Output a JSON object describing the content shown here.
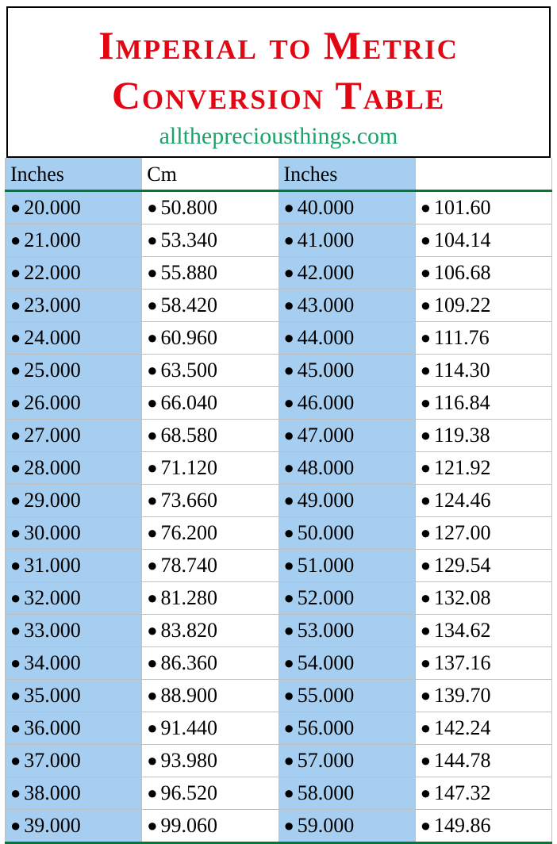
{
  "title_line1": "Imperial to Metric",
  "title_line2": "Conversion Table",
  "title_color": "#e30613",
  "subtitle": "allthepreciousthings.com",
  "subtitle_color": "#1aa36b",
  "background_color": "#ffffff",
  "table": {
    "border_color": "#c0c0c0",
    "header_border_color": "#007a33",
    "bottom_border_color": "#007a33",
    "columns": [
      {
        "label": "Inches",
        "bg": "#a6cef0"
      },
      {
        "label": "Cm",
        "bg": "#ffffff"
      },
      {
        "label": "Inches",
        "bg": "#a6cef0"
      },
      {
        "label": "",
        "bg": "#ffffff"
      }
    ],
    "rows": [
      [
        "20.000",
        "50.800",
        "40.000",
        "101.60"
      ],
      [
        "21.000",
        "53.340",
        "41.000",
        "104.14"
      ],
      [
        "22.000",
        "55.880",
        "42.000",
        "106.68"
      ],
      [
        "23.000",
        "58.420",
        "43.000",
        "109.22"
      ],
      [
        "24.000",
        "60.960",
        "44.000",
        "111.76"
      ],
      [
        "25.000",
        "63.500",
        "45.000",
        "114.30"
      ],
      [
        "26.000",
        "66.040",
        "46.000",
        "116.84"
      ],
      [
        "27.000",
        "68.580",
        "47.000",
        "119.38"
      ],
      [
        "28.000",
        "71.120",
        "48.000",
        "121.92"
      ],
      [
        "29.000",
        "73.660",
        "49.000",
        "124.46"
      ],
      [
        "30.000",
        "76.200",
        "50.000",
        "127.00"
      ],
      [
        "31.000",
        "78.740",
        "51.000",
        "129.54"
      ],
      [
        "32.000",
        "81.280",
        "52.000",
        "132.08"
      ],
      [
        "33.000",
        "83.820",
        "53.000",
        "134.62"
      ],
      [
        "34.000",
        "86.360",
        "54.000",
        "137.16"
      ],
      [
        "35.000",
        "88.900",
        "55.000",
        "139.70"
      ],
      [
        "36.000",
        "91.440",
        "56.000",
        "142.24"
      ],
      [
        "37.000",
        "93.980",
        "57.000",
        "144.78"
      ],
      [
        "38.000",
        "96.520",
        "58.000",
        "147.32"
      ],
      [
        "39.000",
        "99.060",
        "59.000",
        "149.86"
      ]
    ]
  }
}
